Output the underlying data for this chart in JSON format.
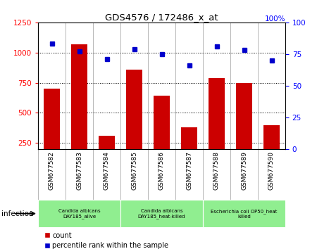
{
  "title": "GDS4576 / 172486_x_at",
  "samples": [
    "GSM677582",
    "GSM677583",
    "GSM677584",
    "GSM677585",
    "GSM677586",
    "GSM677587",
    "GSM677588",
    "GSM677589",
    "GSM677590"
  ],
  "counts": [
    700,
    1070,
    310,
    860,
    640,
    380,
    790,
    750,
    400
  ],
  "percentiles": [
    83,
    77,
    71,
    79,
    75,
    66,
    81,
    78,
    70
  ],
  "ylim_left": [
    200,
    1250
  ],
  "ylim_right": [
    0,
    100
  ],
  "yticks_left": [
    250,
    500,
    750,
    1000,
    1250
  ],
  "yticks_right": [
    0,
    25,
    50,
    75,
    100
  ],
  "bar_color": "#cc0000",
  "dot_color": "#0000cc",
  "groups": [
    {
      "label": "Candida albicans\nDAY185_alive",
      "start": 0,
      "end": 3,
      "color": "#90ee90"
    },
    {
      "label": "Candida albicans\nDAY185_heat-killed",
      "start": 3,
      "end": 6,
      "color": "#90ee90"
    },
    {
      "label": "Escherichia coli OP50_heat\nkilled",
      "start": 6,
      "end": 9,
      "color": "#90ee90"
    }
  ],
  "group_label": "infection",
  "legend_count_label": "count",
  "legend_pct_label": "percentile rank within the sample",
  "bar_width": 0.6,
  "dotted_grid": [
    250,
    500,
    750,
    1000
  ],
  "tick_bg_color": "#cccccc",
  "group_dividers": [
    3,
    6
  ],
  "xlim": [
    -0.5,
    8.5
  ]
}
